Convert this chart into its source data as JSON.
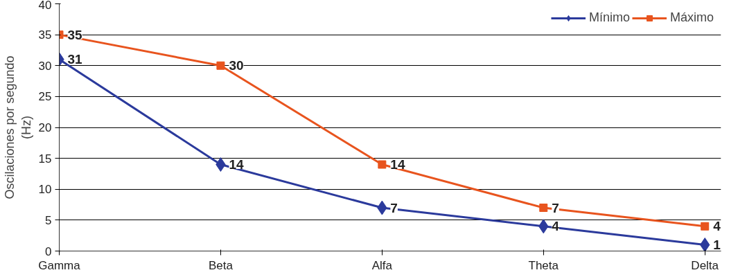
{
  "chart_data": {
    "type": "line",
    "ylabel": "Oscilaciones por segundo\n(Hz)",
    "categories": [
      "Gamma",
      "Beta",
      "Alfa",
      "Theta",
      "Delta"
    ],
    "series": [
      {
        "name": "Mínimo",
        "color": "#2b3a9c",
        "marker": "diamond",
        "values": [
          31,
          14,
          7,
          4,
          1
        ]
      },
      {
        "name": "Máximo",
        "color": "#e8541e",
        "marker": "square",
        "values": [
          35,
          30,
          14,
          7,
          4
        ]
      }
    ],
    "ylim": [
      0,
      40
    ],
    "yticks": [
      0,
      5,
      10,
      15,
      20,
      25,
      30,
      35,
      40
    ],
    "grid": "y",
    "legend": "top right",
    "data_labels": true
  }
}
